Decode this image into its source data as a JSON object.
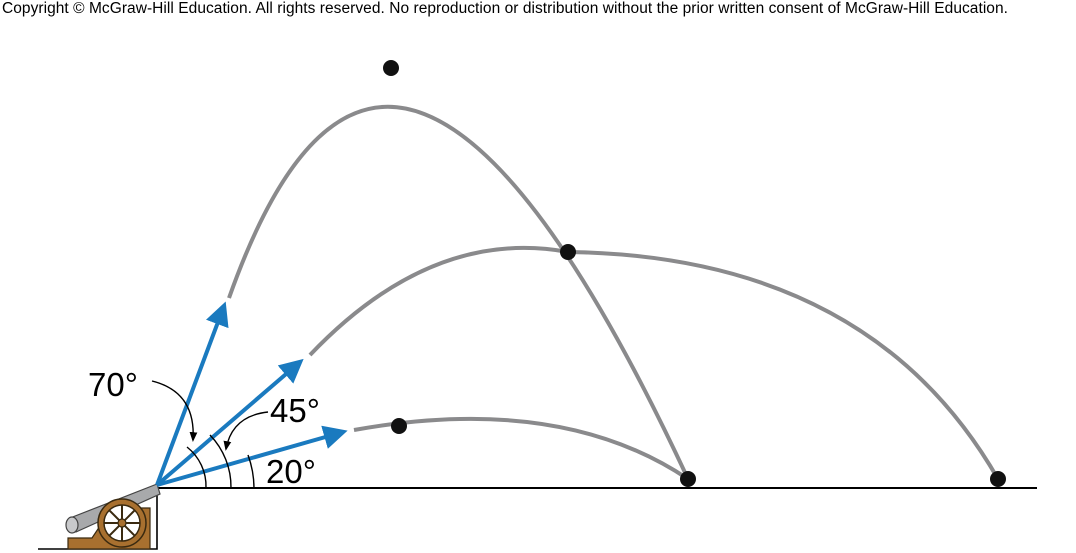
{
  "copyright": "Copyright © McGraw-Hill Education.  All rights reserved. No reproduction or distribution without the prior written consent of McGraw-Hill Education.",
  "angles": [
    {
      "label": "70°",
      "degrees": 70
    },
    {
      "label": "45°",
      "degrees": 45
    },
    {
      "label": "20°",
      "degrees": 20
    }
  ],
  "colors": {
    "trajectory": "#8a8a8c",
    "velocity_arrow": "#1a7abf",
    "point": "#111111",
    "cannon_barrel": "#a8a9ab",
    "cannon_wood": "#a8702f"
  },
  "icons": [
    "cannon-icon"
  ]
}
